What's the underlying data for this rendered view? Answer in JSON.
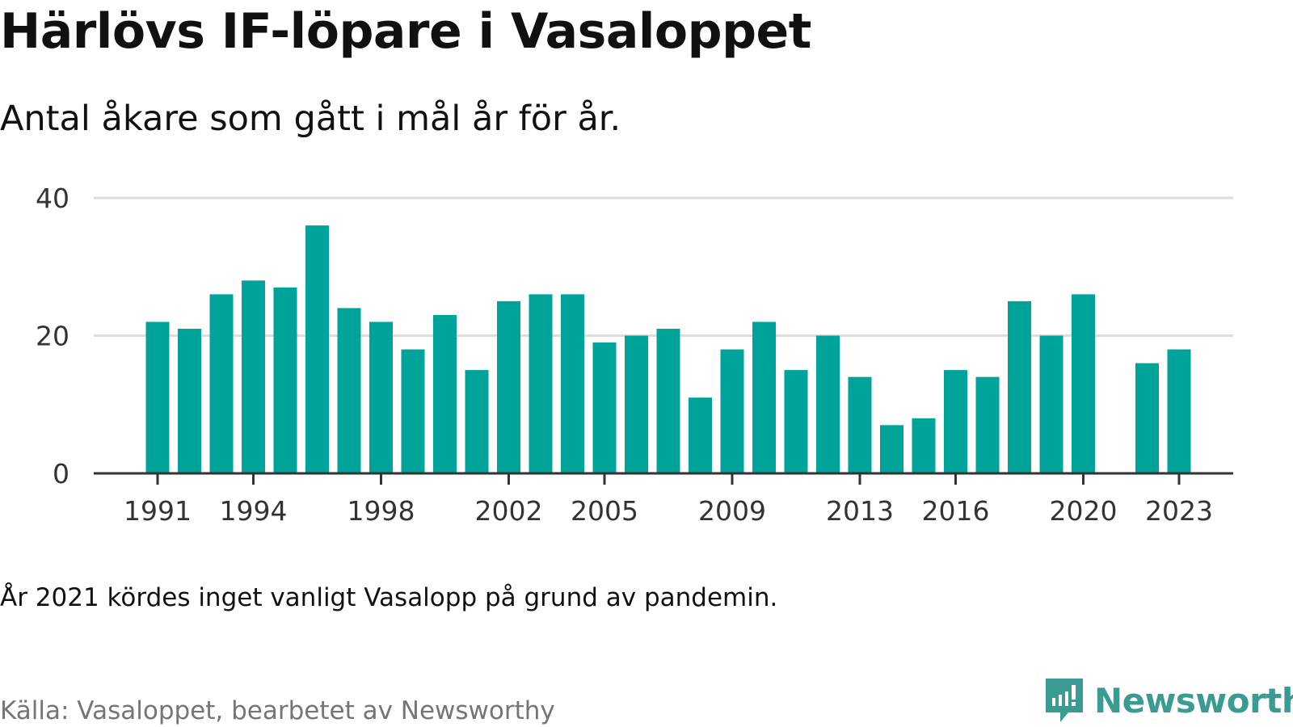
{
  "header": {
    "title": "Härlövs IF-löpare i Vasaloppet",
    "subtitle": "Antal åkare som gått i mål år för år."
  },
  "footer": {
    "note": "År 2021 kördes inget vanligt Vasalopp på grund av pandemin.",
    "source": "Källa: Vasaloppet, bearbetet av Newsworthy",
    "brand": "Newsworthy",
    "brand_icon": "newsworthy-logo-icon"
  },
  "colors": {
    "bar": "#00a39a",
    "brand": "#3a9b93",
    "grid": "#dddddd",
    "axis": "#333333"
  },
  "chart_data": {
    "type": "bar",
    "title": "Härlövs IF-löpare i Vasaloppet",
    "subtitle": "Antal åkare som gått i mål år för år.",
    "xlabel": "",
    "ylabel": "",
    "ylim": [
      0,
      40
    ],
    "yticks": [
      0,
      20,
      40
    ],
    "grid": true,
    "categories": [
      1991,
      1992,
      1993,
      1994,
      1995,
      1996,
      1997,
      1998,
      1999,
      2000,
      2001,
      2002,
      2003,
      2004,
      2005,
      2006,
      2007,
      2008,
      2009,
      2010,
      2011,
      2012,
      2013,
      2014,
      2015,
      2016,
      2017,
      2018,
      2019,
      2020,
      2021,
      2022,
      2023
    ],
    "values": [
      22,
      21,
      26,
      28,
      27,
      36,
      24,
      22,
      18,
      23,
      15,
      25,
      26,
      26,
      19,
      20,
      21,
      11,
      18,
      22,
      15,
      20,
      14,
      7,
      8,
      15,
      14,
      25,
      20,
      26,
      null,
      16,
      18
    ],
    "xtick_labels": [
      1991,
      1994,
      1998,
      2002,
      2005,
      2009,
      2013,
      2016,
      2020,
      2023
    ]
  }
}
